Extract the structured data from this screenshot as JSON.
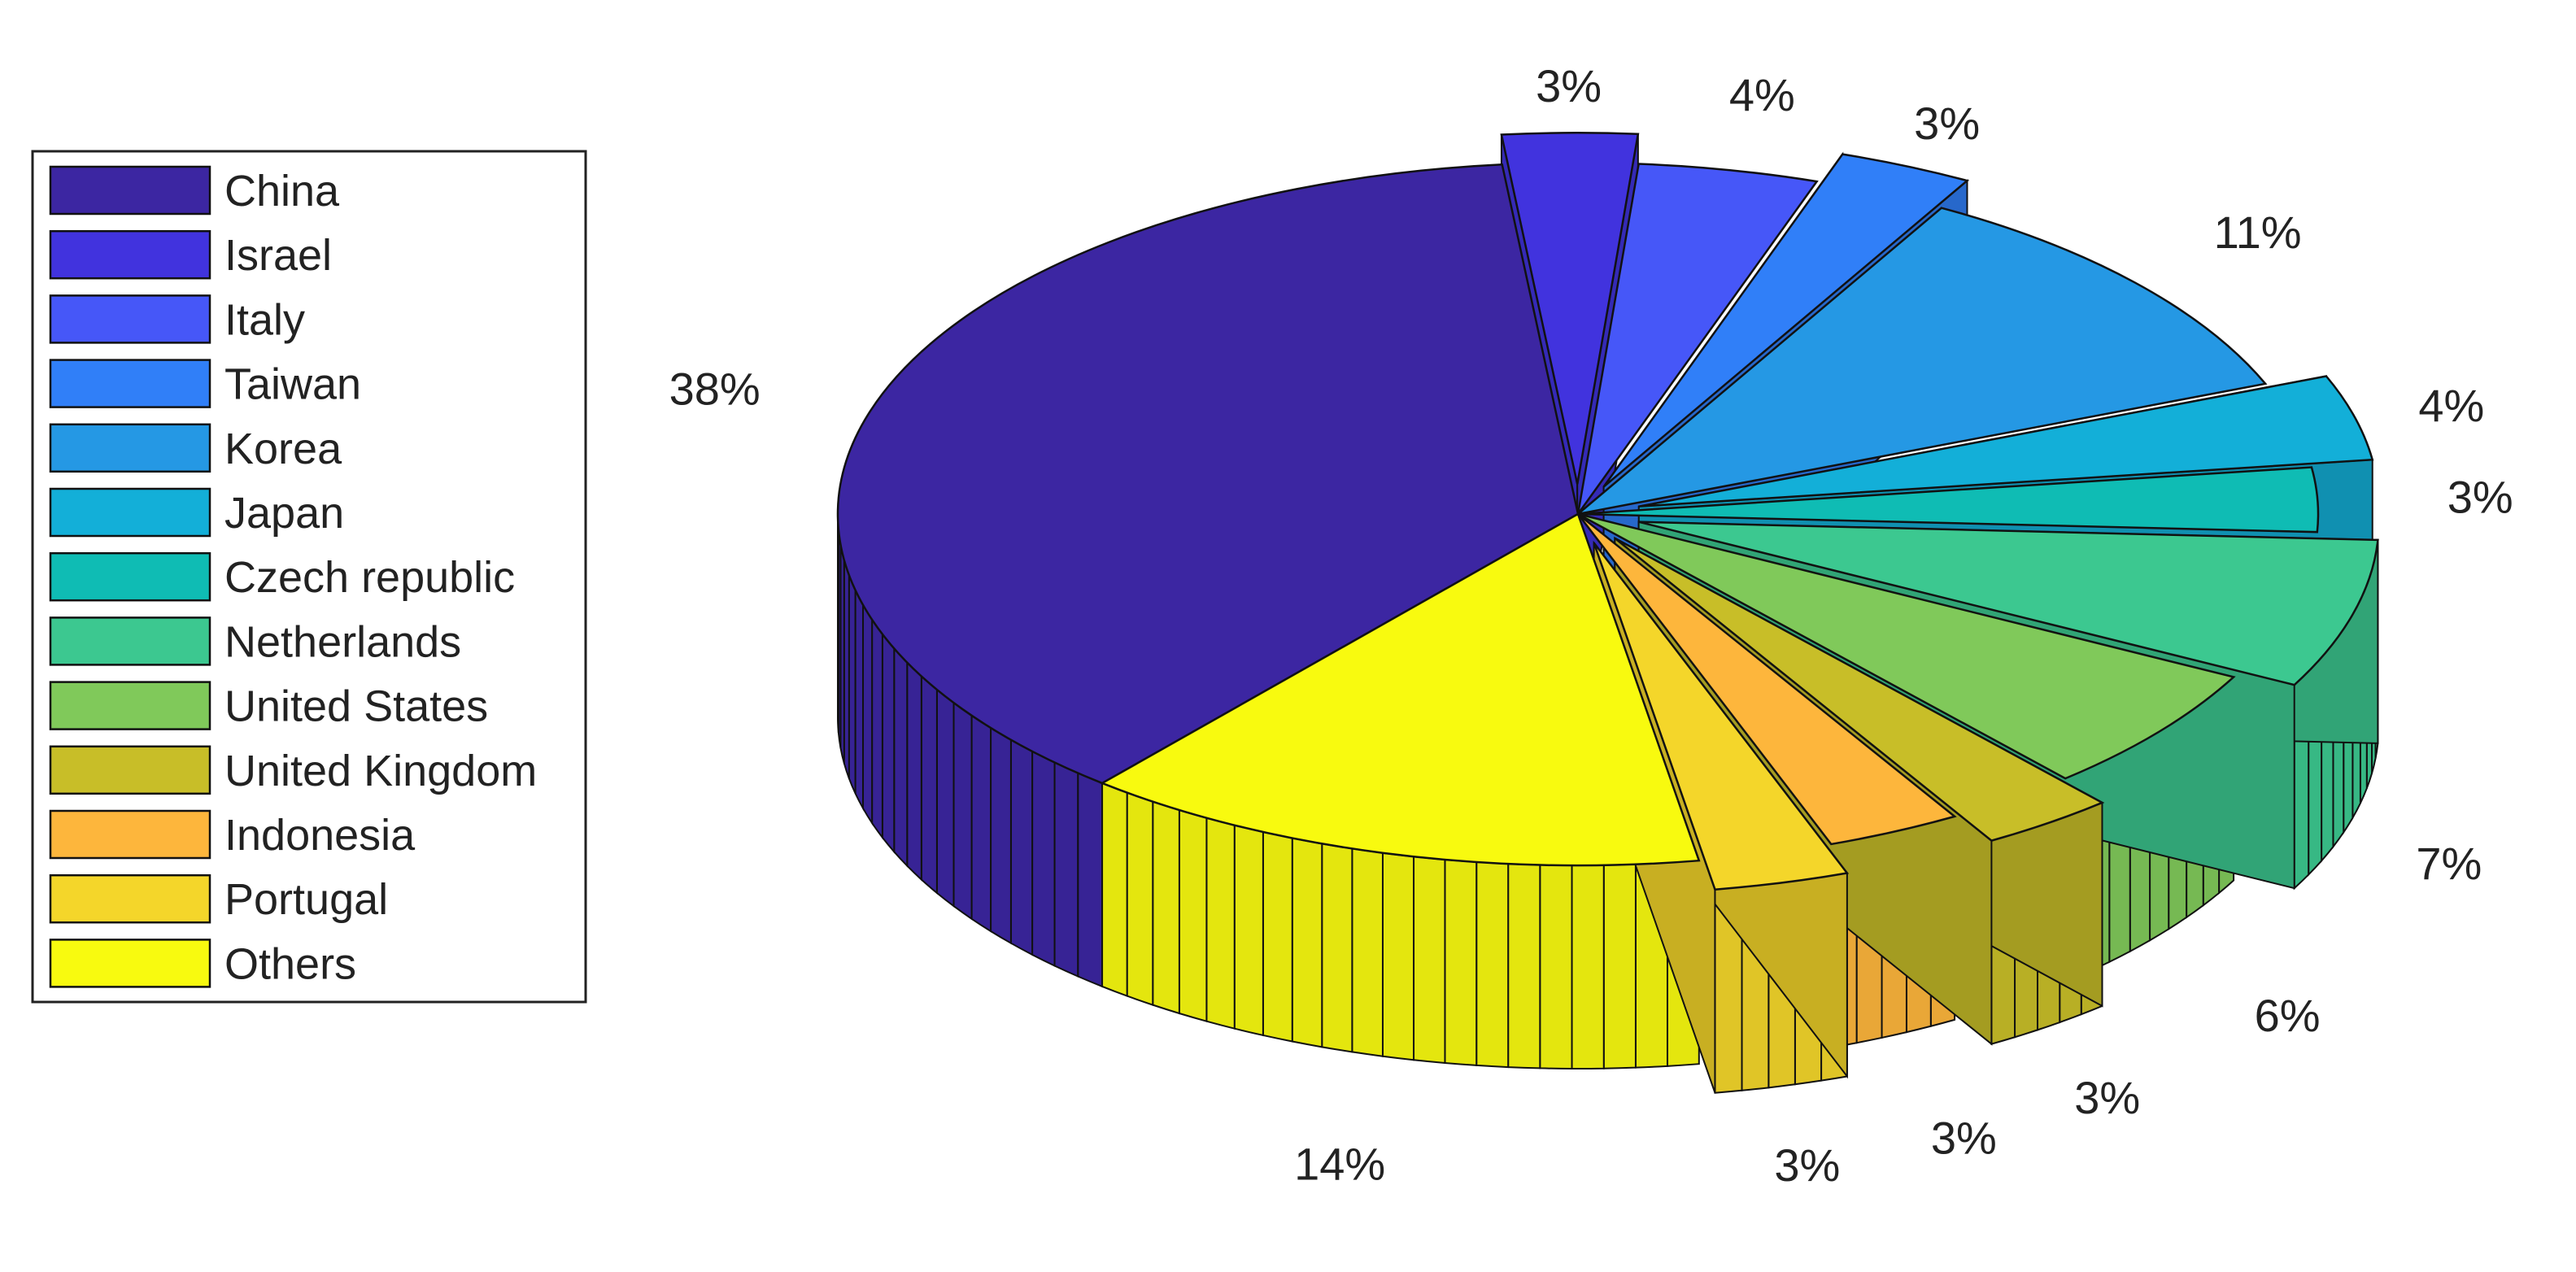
{
  "chart_data": {
    "type": "pie",
    "style": "3d-exploded",
    "legend_position": "left",
    "slices": [
      {
        "label": "China",
        "value": 38,
        "value_label": "38%",
        "color": "#3c26a2",
        "exploded": false
      },
      {
        "label": "Israel",
        "value": 3,
        "value_label": "3%",
        "color": "#4133de",
        "exploded": true
      },
      {
        "label": "Italy",
        "value": 4,
        "value_label": "4%",
        "color": "#4657f8",
        "exploded": false
      },
      {
        "label": "Taiwan",
        "value": 3,
        "value_label": "3%",
        "color": "#307ff8",
        "exploded": true
      },
      {
        "label": "Korea",
        "value": 11,
        "value_label": "11%",
        "color": "#2598e4",
        "exploded": false
      },
      {
        "label": "Japan",
        "value": 4,
        "value_label": "4%",
        "color": "#13afd8",
        "exploded": true
      },
      {
        "label": "Czech republic",
        "value": 3,
        "value_label": "3%",
        "color": "#0fbcb4",
        "exploded": false
      },
      {
        "label": "Netherlands",
        "value": 7,
        "value_label": "7%",
        "color": "#3cc890",
        "exploded": true
      },
      {
        "label": "United States",
        "value": 6,
        "value_label": "6%",
        "color": "#80c95a",
        "exploded": false
      },
      {
        "label": "United Kingdom",
        "value": 3,
        "value_label": "3%",
        "color": "#c8be28",
        "exploded": true
      },
      {
        "label": "Indonesia",
        "value": 3,
        "value_label": "3%",
        "color": "#fdb63c",
        "exploded": false
      },
      {
        "label": "Portugal",
        "value": 3,
        "value_label": "3%",
        "color": "#f4d62a",
        "exploded": true
      },
      {
        "label": "Others",
        "value": 14,
        "value_label": "14%",
        "color": "#f8fa0f",
        "exploded": false
      }
    ]
  }
}
